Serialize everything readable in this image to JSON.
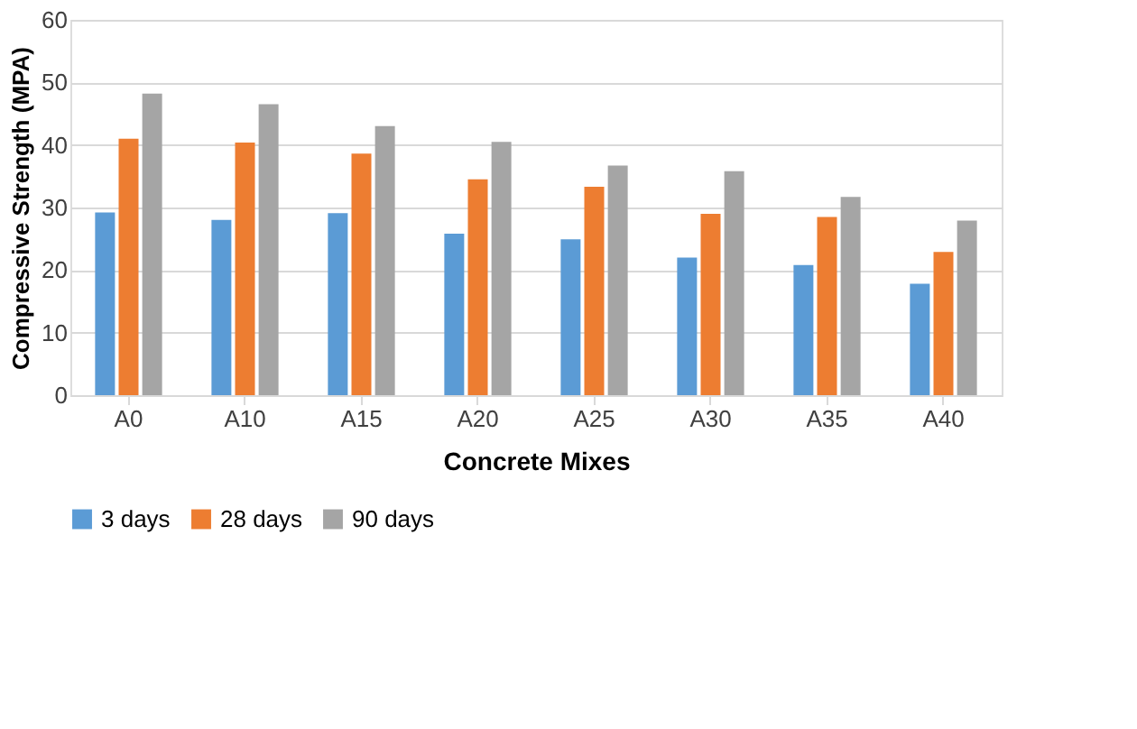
{
  "chart_data": {
    "type": "bar",
    "xlabel": "Concrete Mixes",
    "ylabel": "Compressive Strength (MPA)",
    "categories": [
      "A0",
      "A10",
      "A15",
      "A20",
      "A25",
      "A30",
      "A35",
      "A40"
    ],
    "series": [
      {
        "name": "3 days",
        "color": "#5b9bd5",
        "values": [
          29.2,
          28.0,
          29.1,
          25.8,
          24.9,
          22.0,
          20.8,
          17.8
        ]
      },
      {
        "name": "28 days",
        "color": "#ed7d31",
        "values": [
          41.0,
          40.4,
          38.6,
          34.5,
          33.3,
          29.0,
          28.5,
          22.9
        ]
      },
      {
        "name": "90 days",
        "color": "#a5a5a5",
        "values": [
          48.2,
          46.5,
          43.0,
          40.5,
          36.7,
          35.8,
          31.7,
          27.9
        ]
      }
    ],
    "ylim": [
      0,
      60
    ],
    "yticks": [
      0,
      10,
      20,
      30,
      40,
      50,
      60
    ],
    "grid": "y",
    "legend": "bottom"
  }
}
